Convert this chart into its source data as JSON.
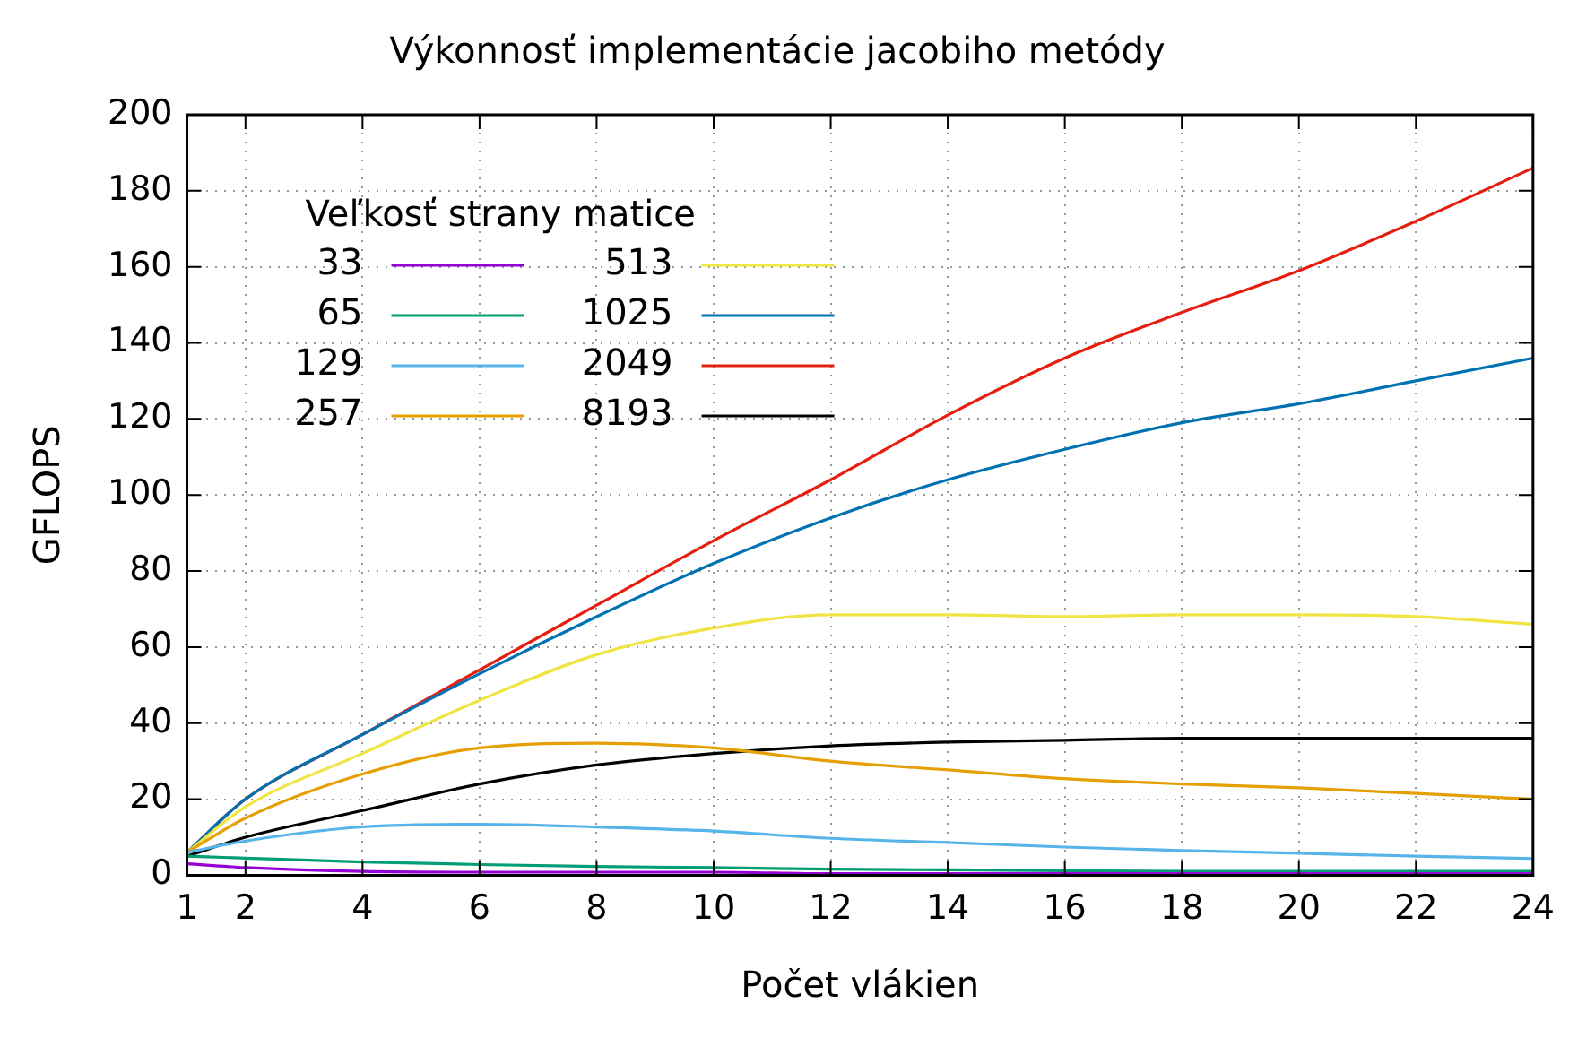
{
  "chart_data": {
    "type": "line",
    "title": "Výkonnosť implementácie jacobiho metódy",
    "xlabel": "Počet vlákien",
    "ylabel": "GFLOPS",
    "legend_title": "Veľkosť strany matice",
    "legend": "top left",
    "grid": true,
    "marker": "none",
    "x": [
      1,
      2,
      4,
      6,
      8,
      10,
      12,
      14,
      16,
      18,
      20,
      22,
      24
    ],
    "xlim": [
      1,
      24
    ],
    "xticks": [
      1,
      2,
      4,
      6,
      8,
      10,
      12,
      14,
      16,
      18,
      20,
      22,
      24
    ],
    "ylim": [
      0,
      200
    ],
    "yticks": [
      0,
      20,
      40,
      60,
      80,
      100,
      120,
      140,
      160,
      180,
      200
    ],
    "series": [
      {
        "name": "33",
        "color": "#9400d3",
        "values": [
          3,
          2,
          1,
          0.8,
          0.8,
          0.8,
          0.4,
          0.4,
          0.4,
          0.4,
          0.4,
          0.4,
          0.4
        ]
      },
      {
        "name": "65",
        "color": "#009e73",
        "values": [
          5,
          4.5,
          3.5,
          2.8,
          2.3,
          2,
          1.6,
          1.4,
          1.2,
          1,
          1,
          1,
          1
        ]
      },
      {
        "name": "129",
        "color": "#56b4e9",
        "values": [
          6,
          9,
          12.7,
          13.4,
          12.7,
          11.6,
          9.7,
          8.6,
          7.4,
          6.5,
          5.8,
          5,
          4.4
        ]
      },
      {
        "name": "257",
        "color": "#e69f00",
        "values": [
          6,
          15,
          26.6,
          33.5,
          34.7,
          33.5,
          30,
          27.7,
          25.4,
          24,
          23,
          21.5,
          20
        ]
      },
      {
        "name": "513",
        "color": "#f0e442",
        "values": [
          6,
          18,
          32,
          46,
          58,
          65,
          68.5,
          68.5,
          68,
          68.5,
          68.5,
          68,
          66
        ]
      },
      {
        "name": "1025",
        "color": "#0072b2",
        "values": [
          6,
          20,
          37,
          53,
          68,
          82,
          94,
          104,
          112,
          119,
          124,
          130,
          136
        ]
      },
      {
        "name": "2049",
        "color": "#e51e10",
        "values": [
          6,
          20,
          37,
          54,
          71,
          88,
          104,
          121,
          136,
          148,
          159,
          172,
          186
        ]
      },
      {
        "name": "8193",
        "color": "#000000",
        "values": [
          5,
          10,
          17,
          24,
          29,
          32,
          34,
          35,
          35.5,
          36,
          36,
          36,
          36
        ]
      }
    ]
  }
}
